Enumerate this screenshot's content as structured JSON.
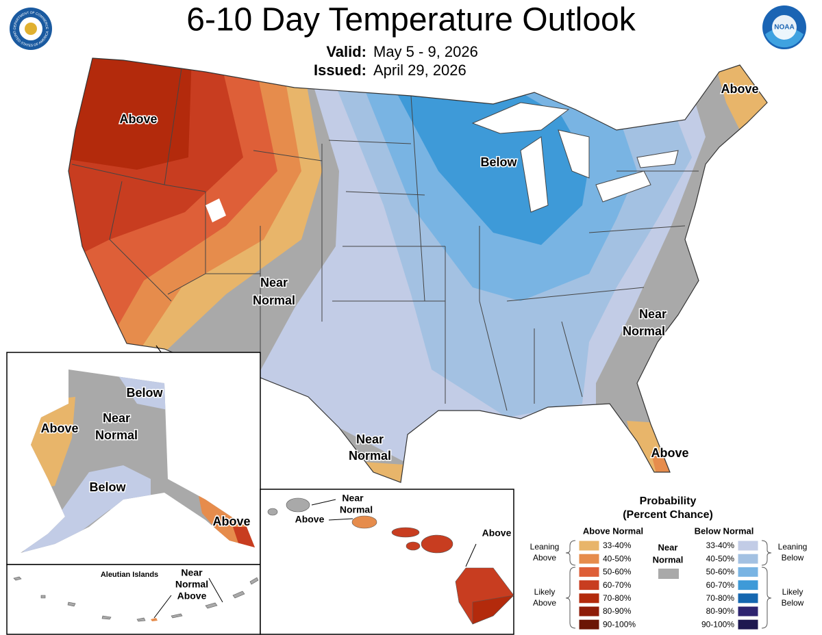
{
  "header": {
    "title": "6-10 Day Temperature Outlook",
    "valid_label": "Valid:",
    "valid": "May 5 - 9, 2026",
    "issued_label": "Issued:",
    "issued": "April 29, 2026"
  },
  "logos": {
    "noaa": "NOAA",
    "seal_top": "DEPARTMENT OF COMMERCE",
    "seal_bottom": "UNITED STATES OF AMERICA"
  },
  "conus_labels": {
    "northwest": "Above",
    "great_lakes": "Below",
    "maine": "Above",
    "southwest": [
      "Near",
      "Normal"
    ],
    "carolinas": [
      "Near",
      "Normal"
    ],
    "texas": [
      "Near",
      "Normal"
    ],
    "florida": "Above"
  },
  "alaska_labels": {
    "northeast": "Below",
    "center": [
      "Near",
      "Normal"
    ],
    "west": "Above",
    "south": "Below",
    "panhandle": "Above"
  },
  "aleutian_labels": {
    "title": "Aleutian Islands",
    "callout": [
      "Near",
      "Normal",
      "Above"
    ]
  },
  "hawaii_labels": {
    "north": [
      "Near",
      "Normal"
    ],
    "west": "Above",
    "big_island": "Above"
  },
  "legend": {
    "title": [
      "Probability",
      "(Percent Chance)"
    ],
    "above_heading": "Above Normal",
    "below_heading": "Below Normal",
    "near": [
      "Near",
      "Normal"
    ],
    "near_color": "#a9a9a9",
    "above": [
      {
        "label": "33-40%",
        "color": "#e8b56a"
      },
      {
        "label": "40-50%",
        "color": "#e68c4c"
      },
      {
        "label": "50-60%",
        "color": "#de5f38"
      },
      {
        "label": "60-70%",
        "color": "#c83d20"
      },
      {
        "label": "70-80%",
        "color": "#b32a0c"
      },
      {
        "label": "80-90%",
        "color": "#8e1c08"
      },
      {
        "label": "90-100%",
        "color": "#6b1505"
      }
    ],
    "below": [
      {
        "label": "33-40%",
        "color": "#c2cce6"
      },
      {
        "label": "40-50%",
        "color": "#a3c1e2"
      },
      {
        "label": "50-60%",
        "color": "#79b4e3"
      },
      {
        "label": "60-70%",
        "color": "#3e9ad8"
      },
      {
        "label": "70-80%",
        "color": "#1567b0"
      },
      {
        "label": "80-90%",
        "color": "#2e2470"
      },
      {
        "label": "90-100%",
        "color": "#1e1850"
      }
    ],
    "brackets": {
      "leaning_above": [
        "Leaning",
        "Above"
      ],
      "likely_above": [
        "Likely",
        "Above"
      ],
      "leaning_below": [
        "Leaning",
        "Below"
      ],
      "likely_below": [
        "Likely",
        "Below"
      ]
    }
  }
}
